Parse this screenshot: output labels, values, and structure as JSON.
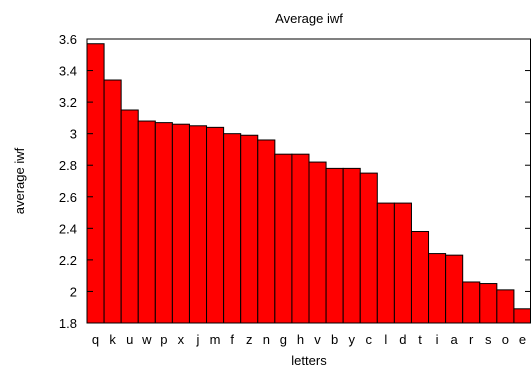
{
  "chart_data": {
    "type": "bar",
    "title": "Average iwf",
    "xlabel": "letters",
    "ylabel": "average iwf",
    "categories": [
      "q",
      "k",
      "u",
      "w",
      "p",
      "x",
      "j",
      "m",
      "f",
      "z",
      "n",
      "g",
      "h",
      "v",
      "b",
      "y",
      "c",
      "l",
      "d",
      "t",
      "i",
      "a",
      "r",
      "s",
      "o",
      "e"
    ],
    "values": [
      3.57,
      3.34,
      3.15,
      3.08,
      3.07,
      3.06,
      3.05,
      3.04,
      3.0,
      2.99,
      2.96,
      2.87,
      2.87,
      2.82,
      2.78,
      2.78,
      2.75,
      2.56,
      2.56,
      2.38,
      2.24,
      2.23,
      2.06,
      2.05,
      2.01,
      1.89
    ],
    "ylim": [
      1.8,
      3.6
    ],
    "yticks": [
      "1.8",
      "2",
      "2.2",
      "2.4",
      "2.6",
      "2.8",
      "3",
      "3.2",
      "3.4",
      "3.6"
    ],
    "grid": false,
    "colors": {
      "bar_fill": "#ff0000",
      "bar_stroke": "#000000",
      "axis": "#000000",
      "background": "#ffffff"
    }
  }
}
